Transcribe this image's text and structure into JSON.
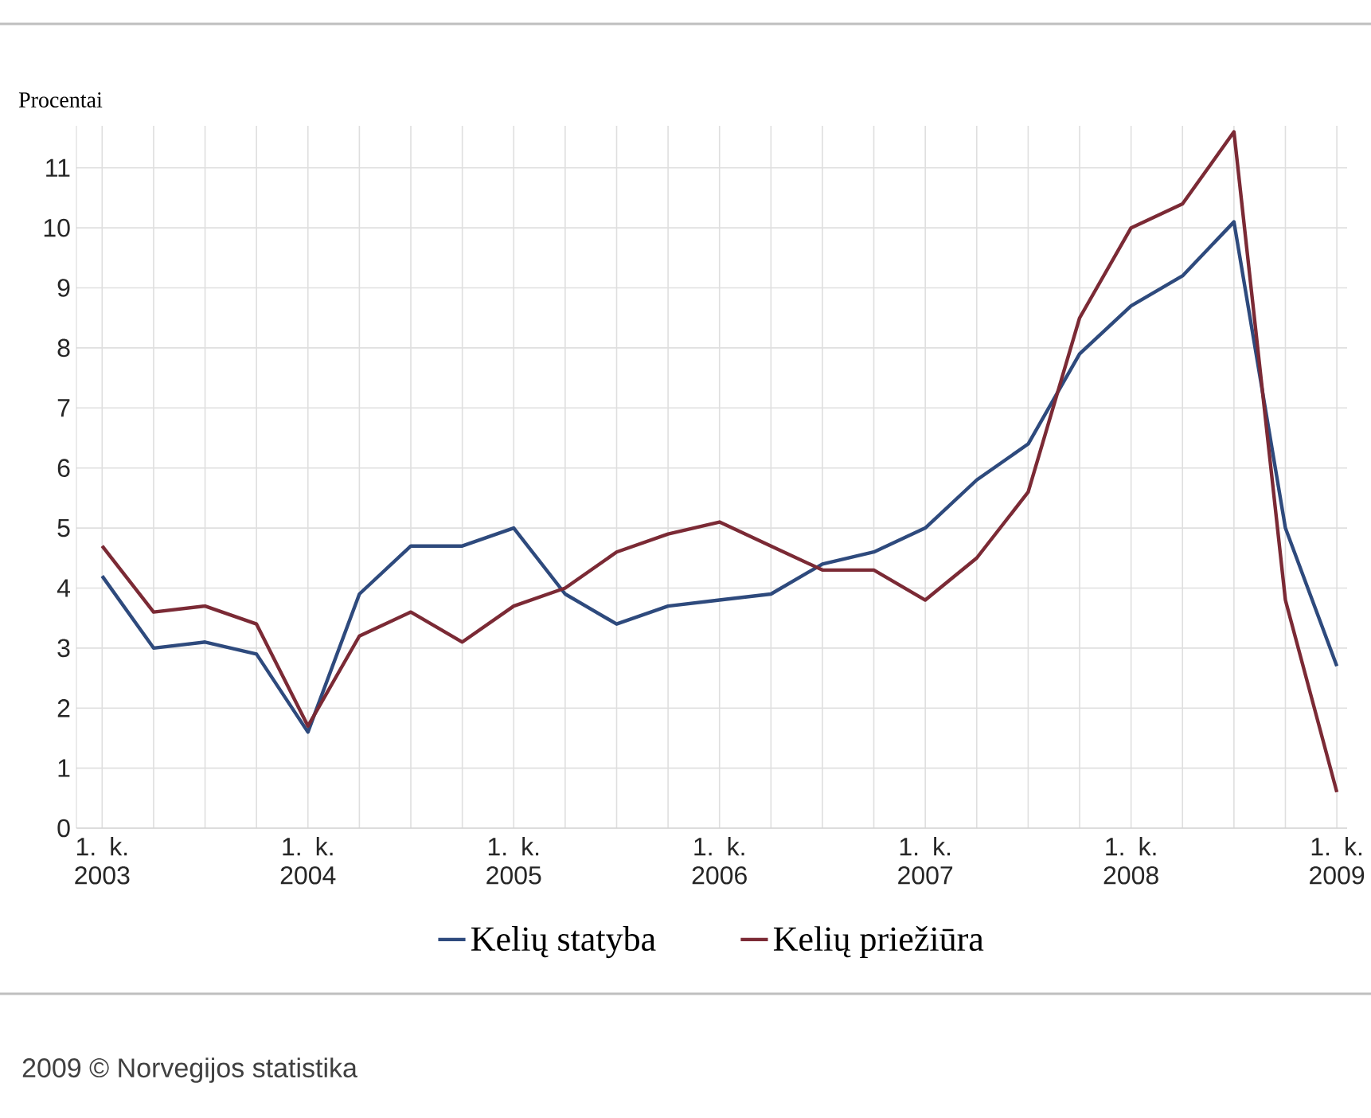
{
  "chart_data": {
    "type": "line",
    "ylabel": "Procentai",
    "categories": [
      "1. k. 2003",
      null,
      null,
      null,
      "1. k. 2004",
      null,
      null,
      null,
      "1. k. 2005",
      null,
      null,
      null,
      "1. k. 2006",
      null,
      null,
      null,
      "1. k. 2007",
      null,
      null,
      null,
      "1. k. 2008",
      null,
      null,
      null,
      "1. k. 2009"
    ],
    "series": [
      {
        "name": "Kelių statyba",
        "color": "#2e4a7d",
        "values": [
          4.2,
          3.0,
          3.1,
          2.9,
          1.6,
          3.9,
          4.7,
          4.7,
          5.0,
          3.9,
          3.4,
          3.7,
          3.8,
          3.9,
          4.4,
          4.6,
          5.0,
          5.8,
          6.4,
          7.9,
          8.7,
          9.2,
          10.1,
          5.0,
          2.7
        ]
      },
      {
        "name": "Kelių priežiūra",
        "color": "#7b2a35",
        "values": [
          4.7,
          3.6,
          3.7,
          3.4,
          1.7,
          3.2,
          3.6,
          3.1,
          3.7,
          4.0,
          4.6,
          4.9,
          5.1,
          4.7,
          4.3,
          4.3,
          3.8,
          4.5,
          5.6,
          8.5,
          10.0,
          10.4,
          11.6,
          3.8,
          0.6
        ]
      }
    ],
    "ylim": [
      0,
      11.7
    ],
    "yticks": [
      0,
      1,
      2,
      3,
      4,
      5,
      6,
      7,
      8,
      9,
      10,
      11
    ],
    "grid": true,
    "legend": "bottom",
    "marker": "none",
    "line_style": "solid",
    "annotations": [
      "2009 © Norvegijos statistika"
    ]
  }
}
